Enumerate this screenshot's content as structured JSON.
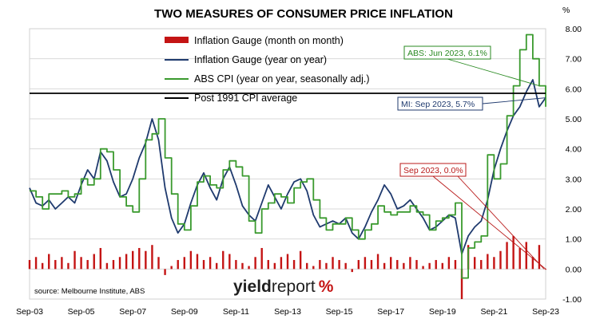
{
  "chart_data": {
    "type": "line",
    "title": "TWO MEASURES OF CONSUMER PRICE INFLATION",
    "y_unit": "%",
    "ylim": [
      -1.0,
      8.0
    ],
    "y_ticks": [
      "8.00",
      "7.00",
      "6.00",
      "5.00",
      "4.00",
      "3.00",
      "2.00",
      "1.00",
      "0.00",
      "-1.00"
    ],
    "x_tick_labels": [
      "Sep-03",
      "Sep-05",
      "Sep-07",
      "Sep-09",
      "Sep-11",
      "Sep-13",
      "Sep-15",
      "Sep-17",
      "Sep-19",
      "Sep-21",
      "Sep-23"
    ],
    "x_range": [
      "2003-09",
      "2023-09"
    ],
    "grid": "horizontal",
    "legend_position": "top-center",
    "legend": [
      "Inflation Gauge (month on month)",
      "Inflation Gauge (year on year)",
      "ABS CPI (year on year, seasonally adj.)",
      "Post 1991 CPI average"
    ],
    "series": [
      {
        "name": "Inflation Gauge (year on year)",
        "style": "line",
        "color": "#1f3a6e",
        "points": [
          [
            "2003-09",
            2.7
          ],
          [
            "2003-12",
            2.2
          ],
          [
            "2004-03",
            2.1
          ],
          [
            "2004-06",
            2.3
          ],
          [
            "2004-09",
            2.0
          ],
          [
            "2004-12",
            2.2
          ],
          [
            "2005-03",
            2.4
          ],
          [
            "2005-06",
            2.2
          ],
          [
            "2005-09",
            2.8
          ],
          [
            "2005-12",
            3.3
          ],
          [
            "2006-03",
            3.0
          ],
          [
            "2006-06",
            3.9
          ],
          [
            "2006-09",
            3.6
          ],
          [
            "2006-12",
            2.9
          ],
          [
            "2007-03",
            2.4
          ],
          [
            "2007-06",
            2.5
          ],
          [
            "2007-09",
            3.0
          ],
          [
            "2007-12",
            3.7
          ],
          [
            "2008-03",
            4.2
          ],
          [
            "2008-06",
            5.0
          ],
          [
            "2008-09",
            4.3
          ],
          [
            "2008-12",
            2.7
          ],
          [
            "2009-03",
            1.7
          ],
          [
            "2009-06",
            1.2
          ],
          [
            "2009-09",
            1.5
          ],
          [
            "2009-12",
            2.2
          ],
          [
            "2010-03",
            2.8
          ],
          [
            "2010-06",
            3.2
          ],
          [
            "2010-09",
            2.7
          ],
          [
            "2010-12",
            2.3
          ],
          [
            "2011-03",
            3.0
          ],
          [
            "2011-06",
            3.4
          ],
          [
            "2011-09",
            2.8
          ],
          [
            "2011-12",
            2.1
          ],
          [
            "2012-03",
            1.8
          ],
          [
            "2012-06",
            1.6
          ],
          [
            "2012-09",
            2.2
          ],
          [
            "2012-12",
            2.8
          ],
          [
            "2013-03",
            2.4
          ],
          [
            "2013-06",
            2.0
          ],
          [
            "2013-09",
            2.5
          ],
          [
            "2013-12",
            2.9
          ],
          [
            "2014-03",
            3.0
          ],
          [
            "2014-06",
            2.6
          ],
          [
            "2014-09",
            1.8
          ],
          [
            "2014-12",
            1.4
          ],
          [
            "2015-03",
            1.5
          ],
          [
            "2015-06",
            1.6
          ],
          [
            "2015-09",
            1.5
          ],
          [
            "2015-12",
            1.7
          ],
          [
            "2016-03",
            1.2
          ],
          [
            "2016-06",
            1.0
          ],
          [
            "2016-09",
            1.4
          ],
          [
            "2016-12",
            1.9
          ],
          [
            "2017-03",
            2.3
          ],
          [
            "2017-06",
            2.8
          ],
          [
            "2017-09",
            2.5
          ],
          [
            "2017-12",
            2.0
          ],
          [
            "2018-03",
            2.1
          ],
          [
            "2018-06",
            2.3
          ],
          [
            "2018-09",
            2.0
          ],
          [
            "2018-12",
            1.7
          ],
          [
            "2019-03",
            1.3
          ],
          [
            "2019-06",
            1.4
          ],
          [
            "2019-09",
            1.6
          ],
          [
            "2019-12",
            1.8
          ],
          [
            "2020-03",
            1.7
          ],
          [
            "2020-06",
            0.5
          ],
          [
            "2020-09",
            1.1
          ],
          [
            "2020-12",
            1.4
          ],
          [
            "2021-03",
            1.6
          ],
          [
            "2021-06",
            2.3
          ],
          [
            "2021-09",
            3.3
          ],
          [
            "2021-12",
            4.0
          ],
          [
            "2022-03",
            4.6
          ],
          [
            "2022-06",
            5.1
          ],
          [
            "2022-09",
            5.4
          ],
          [
            "2022-12",
            5.9
          ],
          [
            "2023-03",
            6.3
          ],
          [
            "2023-06",
            5.4
          ],
          [
            "2023-09",
            5.7
          ]
        ]
      },
      {
        "name": "ABS CPI (year on year, seasonally adj.)",
        "style": "step",
        "color": "#3a9a2e",
        "points": [
          [
            "2003-09",
            2.6
          ],
          [
            "2003-12",
            2.4
          ],
          [
            "2004-03",
            2.0
          ],
          [
            "2004-06",
            2.5
          ],
          [
            "2004-09",
            2.5
          ],
          [
            "2004-12",
            2.6
          ],
          [
            "2005-03",
            2.4
          ],
          [
            "2005-06",
            2.5
          ],
          [
            "2005-09",
            3.0
          ],
          [
            "2005-12",
            2.8
          ],
          [
            "2006-03",
            3.0
          ],
          [
            "2006-06",
            4.0
          ],
          [
            "2006-09",
            3.9
          ],
          [
            "2006-12",
            3.3
          ],
          [
            "2007-03",
            2.4
          ],
          [
            "2007-06",
            2.1
          ],
          [
            "2007-09",
            1.9
          ],
          [
            "2007-12",
            3.0
          ],
          [
            "2008-03",
            4.3
          ],
          [
            "2008-06",
            4.5
          ],
          [
            "2008-09",
            5.0
          ],
          [
            "2008-12",
            3.7
          ],
          [
            "2009-03",
            2.5
          ],
          [
            "2009-06",
            1.5
          ],
          [
            "2009-09",
            1.3
          ],
          [
            "2009-12",
            2.1
          ],
          [
            "2010-03",
            2.9
          ],
          [
            "2010-06",
            3.1
          ],
          [
            "2010-09",
            2.8
          ],
          [
            "2010-12",
            2.7
          ],
          [
            "2011-03",
            3.3
          ],
          [
            "2011-06",
            3.6
          ],
          [
            "2011-09",
            3.4
          ],
          [
            "2011-12",
            3.1
          ],
          [
            "2012-03",
            1.6
          ],
          [
            "2012-06",
            1.2
          ],
          [
            "2012-09",
            2.0
          ],
          [
            "2012-12",
            2.2
          ],
          [
            "2013-03",
            2.5
          ],
          [
            "2013-06",
            2.4
          ],
          [
            "2013-09",
            2.2
          ],
          [
            "2013-12",
            2.7
          ],
          [
            "2014-03",
            2.9
          ],
          [
            "2014-06",
            3.0
          ],
          [
            "2014-09",
            2.3
          ],
          [
            "2014-12",
            1.7
          ],
          [
            "2015-03",
            1.3
          ],
          [
            "2015-06",
            1.5
          ],
          [
            "2015-09",
            1.5
          ],
          [
            "2015-12",
            1.7
          ],
          [
            "2016-03",
            1.3
          ],
          [
            "2016-06",
            1.0
          ],
          [
            "2016-09",
            1.3
          ],
          [
            "2016-12",
            1.5
          ],
          [
            "2017-03",
            2.1
          ],
          [
            "2017-06",
            1.9
          ],
          [
            "2017-09",
            1.8
          ],
          [
            "2017-12",
            1.9
          ],
          [
            "2018-03",
            1.9
          ],
          [
            "2018-06",
            2.1
          ],
          [
            "2018-09",
            1.9
          ],
          [
            "2018-12",
            1.8
          ],
          [
            "2019-03",
            1.3
          ],
          [
            "2019-06",
            1.6
          ],
          [
            "2019-09",
            1.7
          ],
          [
            "2019-12",
            1.8
          ],
          [
            "2020-03",
            2.2
          ],
          [
            "2020-06",
            -0.3
          ],
          [
            "2020-09",
            0.7
          ],
          [
            "2020-12",
            0.9
          ],
          [
            "2021-03",
            1.1
          ],
          [
            "2021-06",
            3.8
          ],
          [
            "2021-09",
            3.0
          ],
          [
            "2021-12",
            3.5
          ],
          [
            "2022-03",
            5.1
          ],
          [
            "2022-06",
            6.1
          ],
          [
            "2022-09",
            7.3
          ],
          [
            "2022-12",
            7.8
          ],
          [
            "2023-03",
            7.0
          ],
          [
            "2023-06",
            6.1
          ],
          [
            "2023-09",
            5.4
          ]
        ]
      },
      {
        "name": "Post 1991 CPI average",
        "style": "line",
        "color": "#000000",
        "points": [
          [
            "2003-09",
            5.85
          ],
          [
            "2023-09",
            5.85
          ]
        ]
      },
      {
        "name": "Inflation Gauge (month on month)",
        "style": "bar",
        "color": "#c41414",
        "points": [
          [
            "2003-09",
            0.3
          ],
          [
            "2003-12",
            0.4
          ],
          [
            "2004-03",
            0.2
          ],
          [
            "2004-06",
            0.5
          ],
          [
            "2004-09",
            0.3
          ],
          [
            "2004-12",
            0.4
          ],
          [
            "2005-03",
            0.2
          ],
          [
            "2005-06",
            0.6
          ],
          [
            "2005-09",
            0.4
          ],
          [
            "2005-12",
            0.3
          ],
          [
            "2006-03",
            0.5
          ],
          [
            "2006-06",
            0.7
          ],
          [
            "2006-09",
            0.2
          ],
          [
            "2006-12",
            0.3
          ],
          [
            "2007-03",
            0.4
          ],
          [
            "2007-06",
            0.5
          ],
          [
            "2007-09",
            0.6
          ],
          [
            "2007-12",
            0.7
          ],
          [
            "2008-03",
            0.6
          ],
          [
            "2008-06",
            0.8
          ],
          [
            "2008-09",
            0.4
          ],
          [
            "2008-12",
            -0.2
          ],
          [
            "2009-03",
            0.1
          ],
          [
            "2009-06",
            0.3
          ],
          [
            "2009-09",
            0.4
          ],
          [
            "2009-12",
            0.6
          ],
          [
            "2010-03",
            0.5
          ],
          [
            "2010-06",
            0.3
          ],
          [
            "2010-09",
            0.4
          ],
          [
            "2010-12",
            0.2
          ],
          [
            "2011-03",
            0.6
          ],
          [
            "2011-06",
            0.5
          ],
          [
            "2011-09",
            0.3
          ],
          [
            "2011-12",
            0.2
          ],
          [
            "2012-03",
            0.1
          ],
          [
            "2012-06",
            0.4
          ],
          [
            "2012-09",
            0.7
          ],
          [
            "2012-12",
            0.3
          ],
          [
            "2013-03",
            0.2
          ],
          [
            "2013-06",
            0.4
          ],
          [
            "2013-09",
            0.5
          ],
          [
            "2013-12",
            0.3
          ],
          [
            "2014-03",
            0.6
          ],
          [
            "2014-06",
            0.2
          ],
          [
            "2014-09",
            0.1
          ],
          [
            "2014-12",
            0.3
          ],
          [
            "2015-03",
            0.2
          ],
          [
            "2015-06",
            0.4
          ],
          [
            "2015-09",
            0.3
          ],
          [
            "2015-12",
            0.2
          ],
          [
            "2016-03",
            -0.1
          ],
          [
            "2016-06",
            0.3
          ],
          [
            "2016-09",
            0.4
          ],
          [
            "2016-12",
            0.3
          ],
          [
            "2017-03",
            0.5
          ],
          [
            "2017-06",
            0.2
          ],
          [
            "2017-09",
            0.4
          ],
          [
            "2017-12",
            0.3
          ],
          [
            "2018-03",
            0.2
          ],
          [
            "2018-06",
            0.4
          ],
          [
            "2018-09",
            0.3
          ],
          [
            "2018-12",
            0.1
          ],
          [
            "2019-03",
            0.2
          ],
          [
            "2019-06",
            0.3
          ],
          [
            "2019-09",
            0.2
          ],
          [
            "2019-12",
            0.4
          ],
          [
            "2020-03",
            0.3
          ],
          [
            "2020-06",
            -1.0
          ],
          [
            "2020-09",
            0.8
          ],
          [
            "2020-12",
            0.4
          ],
          [
            "2021-03",
            0.3
          ],
          [
            "2021-06",
            0.5
          ],
          [
            "2021-09",
            0.4
          ],
          [
            "2021-12",
            0.6
          ],
          [
            "2022-03",
            0.9
          ],
          [
            "2022-06",
            1.1
          ],
          [
            "2022-09",
            0.7
          ],
          [
            "2022-12",
            0.9
          ],
          [
            "2023-03",
            0.4
          ],
          [
            "2023-06",
            0.8
          ],
          [
            "2023-09",
            0.0
          ]
        ]
      }
    ],
    "annotations": [
      {
        "text": "ABS: Jun 2023, 6.1%",
        "color": "#2a8a22",
        "points_to": [
          "2023-06",
          6.1
        ]
      },
      {
        "text": "MI: Sep 2023, 5.7%",
        "color": "#1f3a6e",
        "points_to": [
          "2023-09",
          5.7
        ]
      },
      {
        "text": "Sep 2023, 0.0%",
        "color": "#b81818",
        "points_to": [
          "2023-09",
          0.0
        ]
      }
    ],
    "source": "source: Melbourne Institute, ABS",
    "brand": {
      "text_yield": "yield",
      "text_report": "report",
      "text_pct": "%"
    }
  }
}
